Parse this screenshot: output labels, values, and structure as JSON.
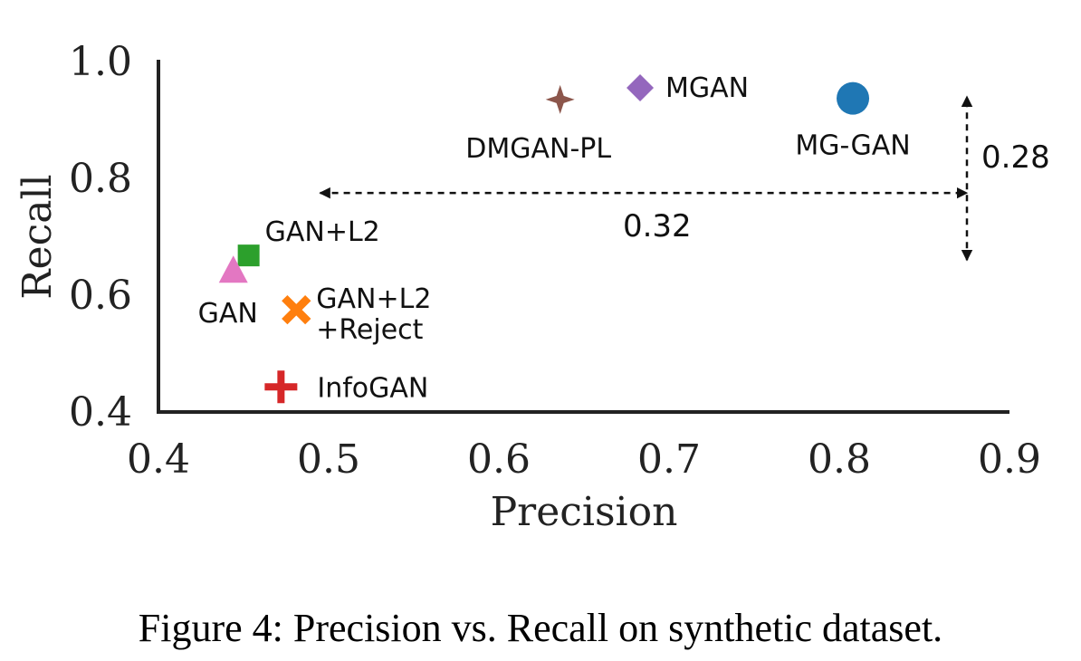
{
  "caption": "Figure 4: Precision vs. Recall on synthetic dataset.",
  "chart_data": {
    "type": "scatter",
    "xlabel": "Precision",
    "ylabel": "Recall",
    "xlim": [
      0.4,
      0.9
    ],
    "ylim": [
      0.4,
      1.0
    ],
    "xticks": [
      "0.4",
      "0.5",
      "0.6",
      "0.7",
      "0.8",
      "0.9"
    ],
    "yticks": [
      "0.4",
      "0.6",
      "0.8",
      "1.0"
    ],
    "grid": false,
    "points": [
      {
        "label": "MG-GAN",
        "x": 0.808,
        "y": 0.937,
        "marker": "circle",
        "color": "#1f77b4"
      },
      {
        "label": "MGAN",
        "x": 0.683,
        "y": 0.955,
        "marker": "diamond",
        "color": "#9467bd"
      },
      {
        "label": "DMGAN-PL",
        "x": 0.636,
        "y": 0.935,
        "marker": "star4",
        "color": "#8c564b"
      },
      {
        "label": "GAN+L2",
        "x": 0.453,
        "y": 0.668,
        "marker": "square",
        "color": "#2ca02c"
      },
      {
        "label": "GAN",
        "x": 0.444,
        "y": 0.64,
        "marker": "triangle",
        "color": "#e377c2"
      },
      {
        "label": "GAN+L2\n+Reject",
        "x": 0.481,
        "y": 0.575,
        "marker": "x",
        "color": "#ff7f0e"
      },
      {
        "label": "InfoGAN",
        "x": 0.472,
        "y": 0.443,
        "marker": "plus",
        "color": "#d62728"
      }
    ],
    "annotations": [
      {
        "text": "0.32",
        "orientation": "horizontal",
        "from": [
          0.495,
          0.775
        ],
        "to": [
          0.875,
          0.775
        ]
      },
      {
        "text": "0.28",
        "orientation": "vertical",
        "from": [
          0.875,
          0.66
        ],
        "to": [
          0.875,
          0.94
        ]
      }
    ]
  }
}
